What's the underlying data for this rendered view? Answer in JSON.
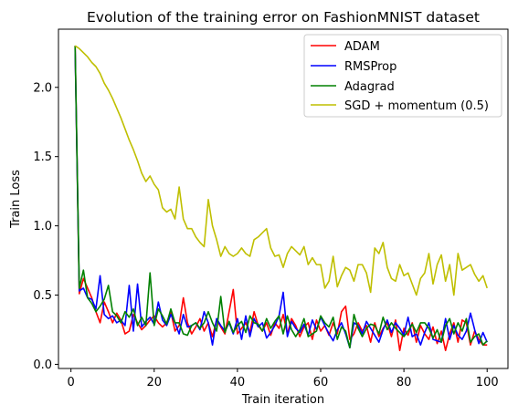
{
  "chart_data": {
    "type": "line",
    "title": "Evolution of the training error on FashionMNIST dataset",
    "xlabel": "Train iteration",
    "ylabel": "Train Loss",
    "xlim": [
      -3,
      105
    ],
    "ylim": [
      -0.03,
      2.42
    ],
    "xticks": [
      0,
      20,
      40,
      60,
      80,
      100
    ],
    "yticks": [
      0.0,
      0.5,
      1.0,
      1.5,
      2.0
    ],
    "xtick_labels": [
      "0",
      "20",
      "40",
      "60",
      "80",
      "100"
    ],
    "ytick_labels": [
      "0.0",
      "0.5",
      "1.0",
      "1.5",
      "2.0"
    ],
    "legend_position": "top-right",
    "grid": false,
    "x_start": 1,
    "series": [
      {
        "name": "ADAM",
        "color": "#ff0000",
        "values": [
          2.3,
          0.51,
          0.62,
          0.55,
          0.48,
          0.38,
          0.3,
          0.45,
          0.38,
          0.3,
          0.37,
          0.32,
          0.22,
          0.24,
          0.36,
          0.3,
          0.25,
          0.28,
          0.32,
          0.35,
          0.3,
          0.27,
          0.3,
          0.38,
          0.24,
          0.28,
          0.48,
          0.3,
          0.22,
          0.27,
          0.33,
          0.24,
          0.3,
          0.2,
          0.32,
          0.27,
          0.22,
          0.38,
          0.54,
          0.22,
          0.26,
          0.3,
          0.23,
          0.38,
          0.28,
          0.24,
          0.3,
          0.21,
          0.3,
          0.26,
          0.36,
          0.22,
          0.33,
          0.28,
          0.2,
          0.27,
          0.3,
          0.18,
          0.32,
          0.24,
          0.28,
          0.21,
          0.3,
          0.22,
          0.38,
          0.42,
          0.18,
          0.22,
          0.3,
          0.24,
          0.28,
          0.16,
          0.3,
          0.2,
          0.26,
          0.3,
          0.2,
          0.32,
          0.1,
          0.26,
          0.21,
          0.3,
          0.16,
          0.28,
          0.22,
          0.18,
          0.27,
          0.15,
          0.24,
          0.1,
          0.22,
          0.3,
          0.16,
          0.32,
          0.3,
          0.14,
          0.24,
          0.18,
          0.14,
          0.14
        ]
      },
      {
        "name": "RMSProp",
        "color": "#0000ff",
        "values": [
          2.28,
          0.53,
          0.55,
          0.48,
          0.47,
          0.4,
          0.64,
          0.36,
          0.33,
          0.35,
          0.3,
          0.32,
          0.28,
          0.57,
          0.24,
          0.58,
          0.27,
          0.31,
          0.34,
          0.29,
          0.45,
          0.32,
          0.28,
          0.36,
          0.3,
          0.22,
          0.36,
          0.27,
          0.28,
          0.3,
          0.25,
          0.38,
          0.3,
          0.14,
          0.33,
          0.28,
          0.24,
          0.3,
          0.22,
          0.33,
          0.18,
          0.35,
          0.2,
          0.33,
          0.27,
          0.3,
          0.19,
          0.23,
          0.28,
          0.35,
          0.52,
          0.2,
          0.31,
          0.26,
          0.23,
          0.29,
          0.21,
          0.32,
          0.25,
          0.34,
          0.28,
          0.22,
          0.17,
          0.25,
          0.3,
          0.22,
          0.12,
          0.3,
          0.28,
          0.22,
          0.31,
          0.26,
          0.21,
          0.16,
          0.25,
          0.32,
          0.23,
          0.3,
          0.26,
          0.21,
          0.34,
          0.2,
          0.22,
          0.14,
          0.23,
          0.3,
          0.18,
          0.17,
          0.16,
          0.33,
          0.18,
          0.28,
          0.21,
          0.18,
          0.24,
          0.37,
          0.25,
          0.15,
          0.23,
          0.16
        ]
      },
      {
        "name": "Adagrad",
        "color": "#008000",
        "values": [
          2.3,
          0.55,
          0.68,
          0.48,
          0.44,
          0.38,
          0.42,
          0.47,
          0.57,
          0.38,
          0.35,
          0.3,
          0.38,
          0.34,
          0.4,
          0.28,
          0.34,
          0.28,
          0.66,
          0.28,
          0.4,
          0.35,
          0.29,
          0.4,
          0.3,
          0.3,
          0.22,
          0.21,
          0.28,
          0.3,
          0.26,
          0.3,
          0.38,
          0.3,
          0.24,
          0.49,
          0.23,
          0.31,
          0.23,
          0.28,
          0.31,
          0.23,
          0.35,
          0.3,
          0.29,
          0.24,
          0.33,
          0.26,
          0.31,
          0.35,
          0.22,
          0.35,
          0.25,
          0.2,
          0.25,
          0.33,
          0.2,
          0.22,
          0.24,
          0.35,
          0.3,
          0.27,
          0.34,
          0.18,
          0.27,
          0.24,
          0.12,
          0.36,
          0.26,
          0.2,
          0.26,
          0.29,
          0.28,
          0.22,
          0.34,
          0.25,
          0.3,
          0.26,
          0.23,
          0.2,
          0.24,
          0.29,
          0.23,
          0.3,
          0.3,
          0.26,
          0.19,
          0.25,
          0.16,
          0.28,
          0.33,
          0.22,
          0.3,
          0.24,
          0.33,
          0.16,
          0.2,
          0.22,
          0.14,
          0.17
        ]
      },
      {
        "name": "SGD + momentum (0.5)",
        "color": "#bfbf00",
        "values": [
          2.3,
          2.28,
          2.25,
          2.22,
          2.18,
          2.15,
          2.1,
          2.03,
          1.98,
          1.92,
          1.85,
          1.78,
          1.7,
          1.62,
          1.55,
          1.47,
          1.38,
          1.32,
          1.36,
          1.3,
          1.26,
          1.13,
          1.1,
          1.12,
          1.05,
          1.28,
          1.05,
          0.98,
          0.98,
          0.92,
          0.88,
          0.85,
          1.19,
          1.0,
          0.9,
          0.78,
          0.85,
          0.8,
          0.78,
          0.8,
          0.84,
          0.8,
          0.78,
          0.9,
          0.92,
          0.95,
          0.98,
          0.84,
          0.78,
          0.79,
          0.7,
          0.8,
          0.85,
          0.82,
          0.79,
          0.85,
          0.72,
          0.77,
          0.72,
          0.72,
          0.55,
          0.6,
          0.78,
          0.56,
          0.64,
          0.7,
          0.68,
          0.6,
          0.72,
          0.72,
          0.66,
          0.52,
          0.84,
          0.8,
          0.88,
          0.7,
          0.62,
          0.6,
          0.72,
          0.64,
          0.66,
          0.58,
          0.5,
          0.62,
          0.66,
          0.8,
          0.58,
          0.72,
          0.79,
          0.6,
          0.72,
          0.5,
          0.8,
          0.68,
          0.7,
          0.72,
          0.65,
          0.6,
          0.64,
          0.55
        ]
      }
    ]
  }
}
